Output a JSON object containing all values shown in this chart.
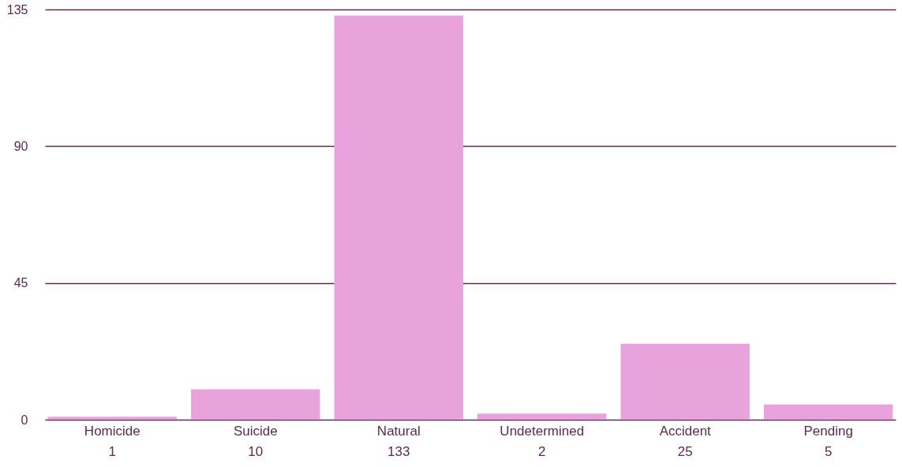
{
  "chart_data": {
    "type": "bar",
    "categories": [
      "Homicide",
      "Suicide",
      "Natural",
      "Undetermined",
      "Accident",
      "Pending"
    ],
    "values": [
      1,
      10,
      133,
      2,
      25,
      5
    ],
    "color": "#e8a2dc",
    "ylim": [
      0,
      135
    ],
    "yticks": [
      0,
      45,
      90,
      135
    ],
    "grid": "y",
    "data_labels": true
  }
}
